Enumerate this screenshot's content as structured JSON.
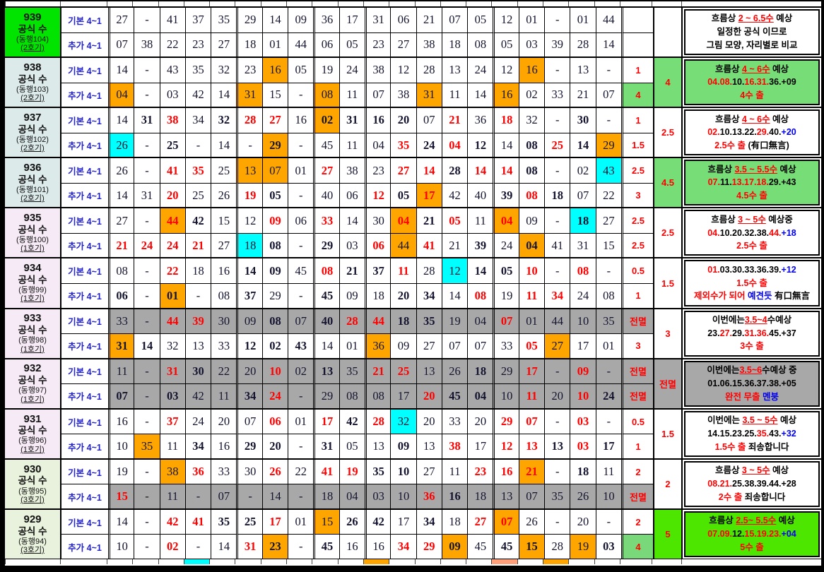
{
  "colors": {
    "red": "#ff0000",
    "blue": "#0000ee",
    "orange": "#ffa500",
    "cyan": "#00ffff",
    "gray": "#a8a8a8",
    "green_label": "#00e400",
    "green_note": "#77dd77",
    "bright_green": "#4ce600",
    "light_green": "#79d879",
    "label_blue": "#dceaea",
    "label_pink": "#f6eaf6",
    "label_green": "#e9f2dc"
  },
  "row_type_labels": {
    "basic": "기본 4~1",
    "extra": "추가 4~1"
  },
  "common_title": "공식 수",
  "rows": [
    {
      "draw": "939",
      "round": "(동행104)",
      "machine": "(2호기)",
      "label_bg": "green",
      "basic": [
        "27",
        "-",
        "41",
        "37",
        "35",
        "29",
        "14",
        "09",
        "36",
        "17",
        "31",
        "06",
        "21",
        "07",
        "05",
        "12",
        "01",
        "-",
        "01",
        "44"
      ],
      "extra": [
        "07",
        "38",
        "22",
        "23",
        "27",
        "18",
        "01",
        "44",
        "06",
        "05",
        "23",
        "27",
        "38",
        "18",
        "08",
        "05",
        "03",
        "39",
        "28",
        "14"
      ],
      "basic_score": "",
      "extra_score": "",
      "total": "",
      "note_bg": "white",
      "note_lines": [
        [
          {
            "t": "흐름상 ",
            "c": "k"
          },
          {
            "t": "2 ~ 6.5수",
            "c": "r",
            "u": true
          },
          {
            "t": " 예상",
            "c": "k"
          }
        ],
        [
          {
            "t": "일정한 공식 이므로",
            "c": "k"
          }
        ],
        [
          {
            "t": "그림 모양, 자리별로 비교",
            "c": "k"
          }
        ]
      ]
    },
    {
      "draw": "938",
      "round": "(동행103)",
      "machine": "(2호기)",
      "label_bg": "blue",
      "basic": [
        "14",
        "-",
        "43",
        "35",
        "32",
        "23",
        "16|o",
        "05",
        "19",
        "24",
        "38",
        "12",
        "28",
        "13",
        "24",
        "12",
        "16|o",
        "-",
        "13",
        "-"
      ],
      "extra": [
        "04|o",
        "-",
        "03",
        "42",
        "14",
        "31|o",
        "15",
        "-",
        "08|o",
        "11",
        "07",
        "38",
        "31|o",
        "11",
        "14",
        "16|o",
        "02",
        "33",
        "21",
        "07"
      ],
      "basic_score": "1",
      "extra_score": "4|G",
      "total": "4|G",
      "note_bg": "green",
      "note_lines": [
        [
          {
            "t": "흐름상 ",
            "c": "k"
          },
          {
            "t": "4 ~ 6수",
            "c": "r",
            "u": true
          },
          {
            "t": " 예상",
            "c": "k"
          }
        ],
        [
          {
            "t": "04.08.",
            "c": "r"
          },
          {
            "t": "10.",
            "c": "k"
          },
          {
            "t": "16.31.",
            "c": "r"
          },
          {
            "t": "36.+09",
            "c": "k"
          }
        ],
        [
          {
            "t": "4수 출",
            "c": "r"
          }
        ]
      ]
    },
    {
      "draw": "937",
      "round": "(동행102)",
      "machine": "(2호기)",
      "label_bg": "blue",
      "basic": [
        "14",
        "31|b",
        "38|rb",
        "34",
        "32|b",
        "28|rb",
        "27|rb",
        "16",
        "02|ob",
        "31|b",
        "16|b",
        "20|b",
        "07",
        "21|r",
        "36",
        "18|r",
        "32",
        "-",
        "30|b",
        "-"
      ],
      "extra": [
        "26|c",
        "-",
        "25|b",
        "-",
        "14",
        "-",
        "29|ob",
        "-",
        "45",
        "11",
        "04",
        "35|rb",
        "24|b",
        "04|r",
        "12|b",
        "14",
        "08|b",
        "25|r",
        "14|b",
        "29|o"
      ],
      "basic_score": "1",
      "extra_score": "1.5",
      "total": "2.5",
      "note_bg": "white",
      "note_lines": [
        [
          {
            "t": "흐름상 ",
            "c": "k"
          },
          {
            "t": "4 ~ 6수",
            "c": "r",
            "u": true
          },
          {
            "t": " 예상",
            "c": "k"
          }
        ],
        [
          {
            "t": "02.",
            "c": "r"
          },
          {
            "t": "10.13.22.",
            "c": "k"
          },
          {
            "t": "29.",
            "c": "r"
          },
          {
            "t": "40.",
            "c": "k"
          },
          {
            "t": "+20",
            "c": "b"
          }
        ],
        [
          {
            "t": "2.5수 출 ",
            "c": "r"
          },
          {
            "t": "(有口無言)",
            "c": "k"
          }
        ]
      ]
    },
    {
      "draw": "936",
      "round": "(동행101)",
      "machine": "(2호기)",
      "label_bg": "blue",
      "basic": [
        "26",
        "-",
        "41|rb",
        "35|rb",
        "25",
        "13|o",
        "07|o",
        "01",
        "27|rb",
        "38",
        "23",
        "27|rb",
        "14|rb",
        "28|b",
        "14|rb",
        "14|rb",
        "08|b",
        "-",
        "02",
        "43|c"
      ],
      "extra": [
        "14",
        "31",
        "20|rb",
        "25",
        "26",
        "19|rb",
        "05|b",
        "-",
        "40",
        "06",
        "12|rb",
        "05|b",
        "17|or",
        "42",
        "40",
        "39|b",
        "08|rb",
        "18|b",
        "07",
        "22"
      ],
      "basic_score": "2.5",
      "extra_score": "3",
      "total": "4.5|G",
      "note_bg": "green",
      "note_lines": [
        [
          {
            "t": "흐름상 ",
            "c": "k"
          },
          {
            "t": "3.5 ~ 5.5수",
            "c": "r",
            "u": true
          },
          {
            "t": " 예상",
            "c": "k"
          }
        ],
        [
          {
            "t": "07.",
            "c": "r"
          },
          {
            "t": "11.",
            "c": "k"
          },
          {
            "t": "13.17.18.",
            "c": "r"
          },
          {
            "t": "29.+43",
            "c": "k"
          }
        ],
        [
          {
            "t": "4.5수 출",
            "c": "r"
          }
        ]
      ]
    },
    {
      "draw": "935",
      "round": "(동행100)",
      "machine": "(1호기)",
      "label_bg": "pink",
      "basic": [
        "27",
        "-",
        "44|or",
        "42|b",
        "15",
        "12",
        "09|rb",
        "06",
        "33|rb",
        "14",
        "30",
        "04|orb",
        "21|b",
        "05|rb",
        "11",
        "04|orb",
        "09",
        "-",
        "18|cb",
        "27"
      ],
      "extra": [
        "21|rb",
        "24|rb",
        "24|rb",
        "21|rb",
        "27",
        "18|c",
        "08|b",
        "-",
        "29|b",
        "03",
        "06|rb",
        "44|o",
        "41|rb",
        "21",
        "39|b",
        "24",
        "04|ob",
        "41",
        "31",
        "15"
      ],
      "basic_score": "2.5",
      "extra_score": "2.5",
      "total": "2.5",
      "note_bg": "white",
      "note_lines": [
        [
          {
            "t": "흐름상 ",
            "c": "k"
          },
          {
            "t": "3 ~ 5수",
            "c": "r",
            "u": true
          },
          {
            "t": " 예상중",
            "c": "k"
          }
        ],
        [
          {
            "t": "04.",
            "c": "r"
          },
          {
            "t": "10.20.32.38.",
            "c": "k"
          },
          {
            "t": "44.",
            "c": "r"
          },
          {
            "t": "+18",
            "c": "b"
          }
        ],
        [
          {
            "t": "2.5수 출",
            "c": "r"
          }
        ]
      ]
    },
    {
      "draw": "934",
      "round": "(동행99)",
      "machine": "(1호기)",
      "label_bg": "pink",
      "basic": [
        "08",
        "-",
        "22|rb",
        "18",
        "16",
        "14|b",
        "09|b",
        "45",
        "08|rb",
        "21|b",
        "37|b",
        "11|rb",
        "28",
        "12|c",
        "14|b",
        "05|b",
        "10|rb",
        "-",
        "08|rb",
        "-"
      ],
      "extra": [
        "06|b",
        "-",
        "01|ob",
        "-",
        "08",
        "37|b",
        "29",
        "-",
        "45|b",
        "09",
        "18",
        "20|b",
        "34|b",
        "14",
        "08|rb",
        "19",
        "11|rb",
        "34|rb",
        "24",
        "08"
      ],
      "basic_score": "0.5",
      "extra_score": "1",
      "total": "1.5",
      "note_bg": "white",
      "note_lines": [
        [
          {
            "t": "01.",
            "c": "r"
          },
          {
            "t": "03.30.33.36.39.",
            "c": "k"
          },
          {
            "t": "+12",
            "c": "b"
          }
        ],
        [
          {
            "t": "1.5수 출",
            "c": "r"
          }
        ],
        [
          {
            "t": "제외수가 되어 ",
            "c": "r"
          },
          {
            "t": "예견듯",
            "c": "b"
          },
          {
            "t": " 有口無言",
            "c": "k"
          }
        ]
      ]
    },
    {
      "draw": "933",
      "round": "(동행98)",
      "machine": "(1호기)",
      "label_bg": "pink",
      "basic": [
        "33|g",
        "-|g",
        "44|gr",
        "39|gr",
        "30|g",
        "09|g",
        "08|gb",
        "07|g",
        "40|gb",
        "28|gr",
        "44|gr",
        "18|gb",
        "35|gb",
        "19|g",
        "04|g",
        "07|gr",
        "01|g",
        "44|g",
        "10|g",
        "35|g"
      ],
      "extra": [
        "31|ob",
        "14|b",
        "32",
        "13",
        "33",
        "12|b",
        "02|b",
        "43|b",
        "14",
        "01",
        "36|o",
        "09",
        "27",
        "07",
        "07",
        "33",
        "05|r",
        "27|o",
        "17",
        "01"
      ],
      "basic_score": "전멸|g",
      "extra_score": "3",
      "total": "3",
      "note_bg": "white",
      "note_lines": [
        [
          {
            "t": "이번에는",
            "c": "k"
          },
          {
            "t": "3.5~4",
            "c": "r",
            "u": true
          },
          {
            "t": "수예상",
            "c": "k"
          }
        ],
        [
          {
            "t": "23.",
            "c": "k"
          },
          {
            "t": "27.",
            "c": "r"
          },
          {
            "t": "29.",
            "c": "k"
          },
          {
            "t": "31.36.",
            "c": "r"
          },
          {
            "t": "45.+37",
            "c": "k"
          }
        ],
        [
          {
            "t": "3수 출",
            "c": "r"
          }
        ]
      ]
    },
    {
      "draw": "932",
      "round": "(동행97)",
      "machine": "(1호기)",
      "label_bg": "pink",
      "basic": [
        "11|g",
        "-|g",
        "31|gr",
        "30|gb",
        "22|g",
        "20|g",
        "10|gr",
        "02|g",
        "13|gb",
        "35|g",
        "21|gr",
        "25|gr",
        "13|g",
        "26|g",
        "18|gb",
        "29|g",
        "17|gr",
        "-|g",
        "09|gr",
        "-|g"
      ],
      "extra": [
        "07|gb",
        "-|g",
        "03|gb",
        "42|g",
        "11|g",
        "34|gb",
        "24|gr",
        "-|g",
        "29|g",
        "08|g",
        "08|g",
        "17|g",
        "20|gr",
        "45|gb",
        "04|gb",
        "10|g",
        "11|gr",
        "20|g",
        "10|gr",
        "24|gb"
      ],
      "basic_score": "전멸|g",
      "extra_score": "전멸|g",
      "total": "전멸|g",
      "note_bg": "gray",
      "note_lines": [
        [
          {
            "t": "이번에는",
            "c": "k"
          },
          {
            "t": "3.5~6",
            "c": "r",
            "u": true
          },
          {
            "t": "수예상 중",
            "c": "k"
          }
        ],
        [
          {
            "t": "01.06.15.36.37.38.+05",
            "c": "k"
          }
        ],
        [
          {
            "t": "완전 무출 ",
            "c": "r"
          },
          {
            "t": "멘붕",
            "c": "b"
          }
        ]
      ]
    },
    {
      "draw": "931",
      "round": "(동행96)",
      "machine": "(1호기)",
      "label_bg": "pink",
      "basic": [
        "16",
        "-",
        "37|rb",
        "24",
        "20",
        "07",
        "06|rb",
        "01",
        "17|rb",
        "42|b",
        "28|rb",
        "32|c",
        "20",
        "33",
        "20",
        "29|rb",
        "07|rb",
        "-",
        "03|rb",
        "-"
      ],
      "extra": [
        "10",
        "35|o",
        "11",
        "34|b",
        "16",
        "29|b",
        "20|b",
        "-",
        "31|b",
        "05",
        "13",
        "09|b",
        "13",
        "38|rb",
        "17",
        "12|rb",
        "13|rb",
        "13|b",
        "03|rb",
        "17|b"
      ],
      "basic_score": "0.5",
      "extra_score": "1",
      "total": "1.5",
      "note_bg": "white",
      "note_lines": [
        [
          {
            "t": "이번에는 ",
            "c": "k"
          },
          {
            "t": "3.5 ~ 5수",
            "c": "r",
            "u": true
          },
          {
            "t": " 예상",
            "c": "k"
          }
        ],
        [
          {
            "t": "14.15.23.25.",
            "c": "k"
          },
          {
            "t": "35.",
            "c": "r"
          },
          {
            "t": "43.",
            "c": "k"
          },
          {
            "t": "+32",
            "c": "b"
          }
        ],
        [
          {
            "t": "1.5수 출 ",
            "c": "r"
          },
          {
            "t": "죄송합니다",
            "c": "k"
          }
        ]
      ]
    },
    {
      "draw": "930",
      "round": "(동행95)",
      "machine": "(3호기)",
      "label_bg": "lgreen",
      "basic": [
        "19",
        "-",
        "38|o",
        "36|rb",
        "33",
        "30",
        "26|rb",
        "22",
        "41|rb",
        "19|rb",
        "35|b",
        "10|b",
        "27",
        "11",
        "23|rb",
        "16|rb",
        "21|or",
        "-",
        "18|b",
        "11"
      ],
      "extra": [
        "15|gr",
        "-|g",
        "11|g",
        "-|g",
        "07|g",
        "-|g",
        "14|g",
        "-|g",
        "18|g",
        "04|g",
        "03|g",
        "10|g",
        "36|gr",
        "16|gb",
        "18|g",
        "13|g",
        "07|g",
        "35|g",
        "26|g",
        "10|g"
      ],
      "basic_score": "2",
      "extra_score": "전멸|g",
      "total": "2",
      "note_bg": "white",
      "note_lines": [
        [
          {
            "t": "흐름상 ",
            "c": "k"
          },
          {
            "t": "3 ~ 5수",
            "c": "r",
            "u": true
          },
          {
            "t": " 예상",
            "c": "k"
          }
        ],
        [
          {
            "t": "08.21.",
            "c": "r"
          },
          {
            "t": "25.38.39.44.+28",
            "c": "k"
          }
        ],
        [
          {
            "t": "2수 출 ",
            "c": "r"
          },
          {
            "t": "죄송합니다",
            "c": "k"
          }
        ]
      ]
    },
    {
      "draw": "929",
      "round": "(동행94)",
      "machine": "(3호기)",
      "label_bg": "lgreen",
      "basic": [
        "14",
        "-",
        "42|rb",
        "41|rb",
        "35|b",
        "25|b",
        "17|rb",
        "01",
        "15|o",
        "26|b",
        "42|b",
        "17",
        "34|b",
        "18",
        "27|rb",
        "07|or",
        "26",
        "-",
        "20",
        "-"
      ],
      "extra": [
        "10",
        "-",
        "02|rb",
        "-",
        "14",
        "31|rb",
        "23|ob",
        "-",
        "45|b",
        "16",
        "16",
        "34|rb",
        "29|rb",
        "09|ob",
        "45",
        "45|b",
        "15|ob",
        "28",
        "19|o",
        "03|b"
      ],
      "basic_score": "2",
      "extra_score": "4|L",
      "total": "5|B",
      "note_bg": "bright",
      "note_lines": [
        [
          {
            "t": "흐름상 ",
            "c": "k"
          },
          {
            "t": "2.5~ 5.5수",
            "c": "r",
            "u": true
          },
          {
            "t": " 예상",
            "c": "k"
          }
        ],
        [
          {
            "t": "07.09.",
            "c": "r"
          },
          {
            "t": "12.",
            "c": "k"
          },
          {
            "t": "15.19.23.",
            "c": "r"
          },
          {
            "t": "+04",
            "c": "b"
          }
        ],
        [
          {
            "t": "5수 출",
            "c": "r"
          }
        ]
      ]
    }
  ],
  "bottom_partial_highlights": [
    {
      "col": 4,
      "color": "cyan"
    },
    {
      "col": 11,
      "color": "orange"
    },
    {
      "col": 16,
      "color": "pink"
    },
    {
      "col": 18,
      "color": "orange"
    }
  ]
}
